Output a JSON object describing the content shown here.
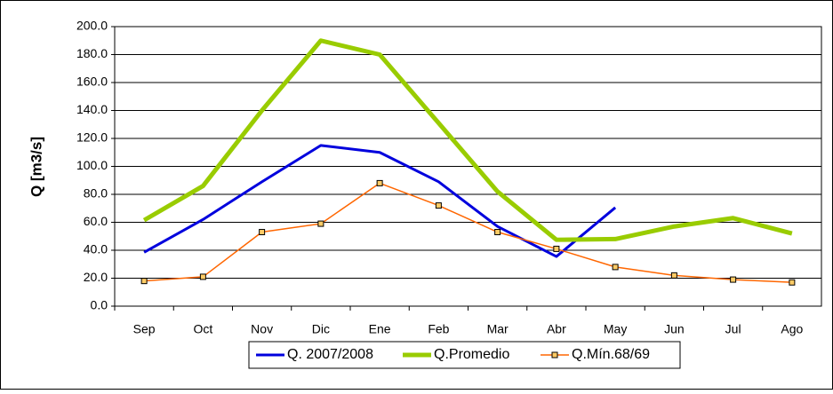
{
  "chart_data": {
    "type": "line",
    "y_label": "Q [m3/s]",
    "categories": [
      "Sep",
      "Oct",
      "Nov",
      "Dic",
      "Ene",
      "Feb",
      "Mar",
      "Abr",
      "May",
      "Jun",
      "Jul",
      "Ago"
    ],
    "series": [
      {
        "name": "Q. 2007/2008",
        "color": "#0000dd",
        "width": 3,
        "marker": false,
        "values": [
          38.5,
          62,
          89,
          115,
          110,
          89,
          57,
          35.5,
          70.5,
          null,
          null,
          null
        ]
      },
      {
        "name": "Q.Promedio",
        "color": "#99cc00",
        "width": 5,
        "marker": false,
        "values": [
          61.5,
          86,
          140,
          190,
          180,
          131,
          82,
          47.5,
          48,
          57,
          63,
          52
        ]
      },
      {
        "name": "Q.Mín.68/69",
        "color": "#ff6600",
        "width": 1.5,
        "marker": true,
        "values": [
          18,
          21,
          53,
          59,
          88,
          72,
          53,
          41,
          28,
          22,
          19,
          17
        ]
      }
    ],
    "ylim": [
      0,
      200
    ],
    "yticks": [
      {
        "value": 0,
        "label": "0.0"
      },
      {
        "value": 20,
        "label": "20.0"
      },
      {
        "value": 40,
        "label": "40.0"
      },
      {
        "value": 60,
        "label": "60.0"
      },
      {
        "value": 80,
        "label": "80.0"
      },
      {
        "value": 100,
        "label": "100.0"
      },
      {
        "value": 120,
        "label": "120.0"
      },
      {
        "value": 140,
        "label": "140.0"
      },
      {
        "value": 160,
        "label": "160.0"
      },
      {
        "value": 180,
        "label": "180.0"
      },
      {
        "value": 200,
        "label": "200.0"
      }
    ],
    "grid": true,
    "legend": "bottom"
  }
}
